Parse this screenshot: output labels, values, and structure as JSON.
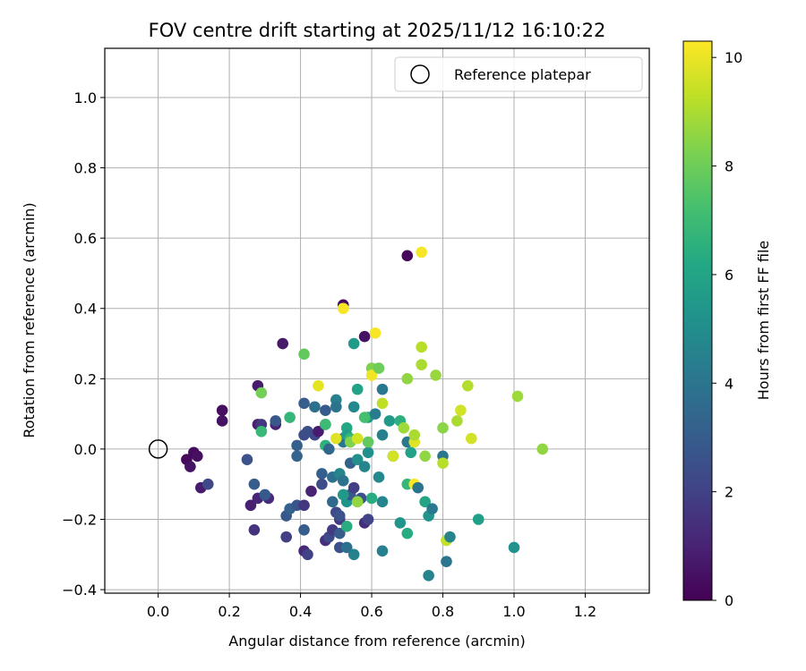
{
  "chart_data": {
    "type": "scatter",
    "title": "FOV centre drift starting at 2025/11/12 16:10:22",
    "xlabel": "Angular distance from reference (arcmin)",
    "ylabel": "Rotation from reference (arcmin)",
    "xlim": [
      -0.15,
      1.38
    ],
    "ylim": [
      -0.41,
      1.14
    ],
    "xticks": [
      "0.0",
      "0.2",
      "0.4",
      "0.6",
      "0.8",
      "1.0",
      "1.2"
    ],
    "xtick_values": [
      0.0,
      0.2,
      0.4,
      0.6,
      0.8,
      1.0,
      1.2
    ],
    "yticks": [
      "−0.4",
      "−0.2",
      "0.0",
      "0.2",
      "0.4",
      "0.6",
      "0.8",
      "1.0"
    ],
    "ytick_values": [
      -0.4,
      -0.2,
      0.0,
      0.2,
      0.4,
      0.6,
      0.8,
      1.0
    ],
    "grid": true,
    "legend": {
      "position": "top-right",
      "label": "Reference platepar"
    },
    "reference_point": [
      0.0,
      0.0
    ],
    "colorbar": {
      "label": "Hours from first FF file",
      "range": [
        0,
        10.3
      ],
      "ticks": [
        "0",
        "2",
        "4",
        "6",
        "8",
        "10"
      ],
      "tick_values": [
        0,
        2,
        4,
        6,
        8,
        10
      ],
      "colormap": "viridis"
    },
    "points": [
      [
        0.7,
        0.55,
        0.2
      ],
      [
        0.52,
        0.41,
        0.3
      ],
      [
        0.58,
        0.32,
        0.5
      ],
      [
        0.35,
        0.3,
        0.7
      ],
      [
        0.28,
        0.18,
        0.8
      ],
      [
        0.18,
        0.11,
        0.4
      ],
      [
        0.18,
        0.08,
        0.5
      ],
      [
        0.28,
        0.07,
        0.9
      ],
      [
        0.1,
        -0.01,
        0.3
      ],
      [
        0.11,
        -0.02,
        0.4
      ],
      [
        0.08,
        -0.03,
        0.2
      ],
      [
        0.09,
        -0.05,
        0.5
      ],
      [
        0.12,
        -0.11,
        0.8
      ],
      [
        0.14,
        -0.1,
        2.2
      ],
      [
        0.26,
        -0.16,
        0.9
      ],
      [
        0.28,
        -0.14,
        1.1
      ],
      [
        0.27,
        -0.23,
        1.5
      ],
      [
        0.31,
        -0.14,
        1.3
      ],
      [
        0.29,
        0.07,
        1.6
      ],
      [
        0.33,
        0.07,
        1.0
      ],
      [
        0.33,
        0.08,
        2.8
      ],
      [
        0.25,
        -0.03,
        2.6
      ],
      [
        0.27,
        -0.1,
        3.0
      ],
      [
        0.3,
        -0.13,
        2.9
      ],
      [
        0.36,
        -0.19,
        2.8
      ],
      [
        0.36,
        -0.25,
        1.9
      ],
      [
        0.37,
        -0.17,
        3.2
      ],
      [
        0.39,
        -0.16,
        2.7
      ],
      [
        0.39,
        0.01,
        3.1
      ],
      [
        0.39,
        -0.02,
        3.3
      ],
      [
        0.41,
        0.13,
        3.0
      ],
      [
        0.42,
        0.05,
        2.5
      ],
      [
        0.41,
        0.04,
        2.4
      ],
      [
        0.43,
        -0.12,
        1.0
      ],
      [
        0.41,
        -0.16,
        1.6
      ],
      [
        0.41,
        -0.23,
        3.0
      ],
      [
        0.41,
        -0.29,
        1.2
      ],
      [
        0.42,
        -0.3,
        2.0
      ],
      [
        0.44,
        0.12,
        3.8
      ],
      [
        0.44,
        0.04,
        2.2
      ],
      [
        0.45,
        0.05,
        0.8
      ],
      [
        0.46,
        -0.07,
        3.1
      ],
      [
        0.46,
        -0.1,
        2.4
      ],
      [
        0.47,
        0.11,
        2.9
      ],
      [
        0.47,
        0.07,
        3.5
      ],
      [
        0.47,
        0.01,
        6.6
      ],
      [
        0.47,
        -0.26,
        1.4
      ],
      [
        0.48,
        -0.25,
        2.3
      ],
      [
        0.48,
        0.0,
        3.4
      ],
      [
        0.49,
        -0.23,
        1.8
      ],
      [
        0.49,
        -0.08,
        3.7
      ],
      [
        0.49,
        -0.15,
        3.5
      ],
      [
        0.5,
        0.14,
        4.4
      ],
      [
        0.5,
        0.12,
        3.9
      ],
      [
        0.5,
        -0.18,
        2.2
      ],
      [
        0.51,
        -0.2,
        1.6
      ],
      [
        0.51,
        -0.28,
        2.5
      ],
      [
        0.51,
        -0.24,
        3.0
      ],
      [
        0.51,
        -0.19,
        2.6
      ],
      [
        0.51,
        -0.07,
        4.6
      ],
      [
        0.52,
        0.03,
        3.2
      ],
      [
        0.52,
        -0.09,
        3.9
      ],
      [
        0.52,
        0.02,
        4.1
      ],
      [
        0.53,
        0.06,
        6.2
      ],
      [
        0.53,
        0.04,
        5.8
      ],
      [
        0.53,
        -0.15,
        5.3
      ],
      [
        0.53,
        -0.22,
        6.4
      ],
      [
        0.53,
        -0.28,
        3.8
      ],
      [
        0.54,
        0.03,
        6.8
      ],
      [
        0.54,
        0.02,
        8.3
      ],
      [
        0.54,
        -0.04,
        3.2
      ],
      [
        0.54,
        -0.13,
        2.8
      ],
      [
        0.55,
        -0.11,
        1.9
      ],
      [
        0.55,
        -0.3,
        4.5
      ],
      [
        0.55,
        0.12,
        4.8
      ],
      [
        0.55,
        0.3,
        5.6
      ],
      [
        0.56,
        0.17,
        5.9
      ],
      [
        0.56,
        -0.03,
        5.1
      ],
      [
        0.56,
        -0.15,
        8.1
      ],
      [
        0.57,
        -0.14,
        2.6
      ],
      [
        0.58,
        -0.21,
        1.4
      ],
      [
        0.58,
        -0.05,
        4.6
      ],
      [
        0.59,
        -0.01,
        5.1
      ],
      [
        0.59,
        0.02,
        7.8
      ],
      [
        0.59,
        0.09,
        5.6
      ],
      [
        0.59,
        -0.2,
        2.1
      ],
      [
        0.6,
        0.23,
        8.3
      ],
      [
        0.6,
        0.21,
        10.1
      ],
      [
        0.61,
        0.1,
        4.3
      ],
      [
        0.61,
        0.33,
        10.2
      ],
      [
        0.62,
        0.23,
        8.0
      ],
      [
        0.62,
        -0.08,
        4.8
      ],
      [
        0.63,
        0.04,
        4.5
      ],
      [
        0.63,
        0.13,
        9.3
      ],
      [
        0.63,
        0.17,
        4.1
      ],
      [
        0.63,
        -0.29,
        4.4
      ],
      [
        0.63,
        -0.15,
        4.6
      ],
      [
        0.65,
        0.08,
        5.6
      ],
      [
        0.66,
        -0.02,
        4.8
      ],
      [
        0.66,
        -0.02,
        9.6
      ],
      [
        0.68,
        0.08,
        6.5
      ],
      [
        0.69,
        0.06,
        8.8
      ],
      [
        0.68,
        -0.21,
        5.3
      ],
      [
        0.7,
        -0.1,
        6.8
      ],
      [
        0.7,
        0.02,
        4.2
      ],
      [
        0.7,
        -0.24,
        6.3
      ],
      [
        0.7,
        0.2,
        8.6
      ],
      [
        0.71,
        -0.01,
        5.9
      ],
      [
        0.72,
        0.02,
        9.8
      ],
      [
        0.72,
        0.04,
        9.0
      ],
      [
        0.72,
        -0.1,
        10.3
      ],
      [
        0.73,
        -0.11,
        3.9
      ],
      [
        0.74,
        0.56,
        10.2
      ],
      [
        0.74,
        0.29,
        9.2
      ],
      [
        0.74,
        0.24,
        9.0
      ],
      [
        0.75,
        -0.02,
        8.6
      ],
      [
        0.75,
        -0.15,
        6.0
      ],
      [
        0.76,
        -0.19,
        5.3
      ],
      [
        0.76,
        -0.36,
        4.6
      ],
      [
        0.77,
        -0.17,
        4.2
      ],
      [
        0.78,
        0.21,
        8.7
      ],
      [
        0.8,
        -0.02,
        4.0
      ],
      [
        0.8,
        0.06,
        8.5
      ],
      [
        0.8,
        -0.04,
        9.2
      ],
      [
        0.81,
        -0.26,
        9.4
      ],
      [
        0.82,
        -0.25,
        4.6
      ],
      [
        0.81,
        -0.32,
        4.0
      ],
      [
        0.84,
        0.08,
        9.0
      ],
      [
        0.85,
        0.11,
        9.6
      ],
      [
        0.87,
        0.18,
        9.1
      ],
      [
        0.88,
        0.03,
        9.6
      ],
      [
        0.9,
        -0.2,
        5.8
      ],
      [
        1.0,
        -0.28,
        5.2
      ],
      [
        1.01,
        0.15,
        8.8
      ],
      [
        1.08,
        0.0,
        8.6
      ],
      [
        0.45,
        0.18,
        9.9
      ],
      [
        0.52,
        0.4,
        10.2
      ],
      [
        0.56,
        -0.15,
        8.6
      ],
      [
        0.6,
        -0.14,
        6.4
      ],
      [
        0.29,
        0.05,
        6.9
      ],
      [
        0.29,
        0.16,
        8.1
      ],
      [
        0.41,
        0.27,
        7.8
      ],
      [
        0.37,
        0.09,
        6.8
      ],
      [
        0.5,
        0.03,
        9.8
      ],
      [
        0.56,
        0.03,
        9.6
      ],
      [
        0.58,
        0.09,
        7.2
      ],
      [
        0.52,
        -0.13,
        5.5
      ],
      [
        0.47,
        0.07,
        7.0
      ]
    ]
  }
}
